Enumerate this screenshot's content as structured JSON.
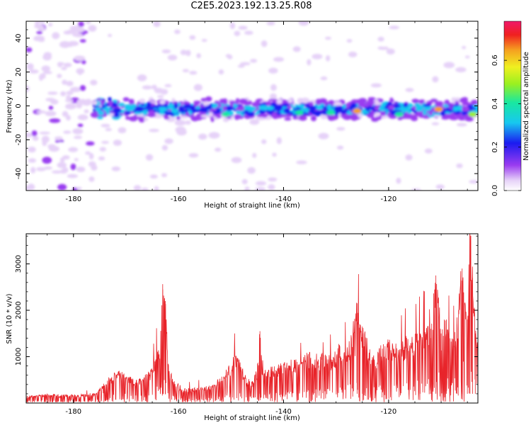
{
  "figure": {
    "title": "C2E5.2023.192.13.25.R08"
  },
  "chart_data": [
    {
      "type": "heatmap",
      "xlabel": "Height of straight line (km)",
      "ylabel": "Frequency (Hz)",
      "xlim": [
        -189,
        -103
      ],
      "ylim": [
        -50,
        50
      ],
      "xticks": [
        -180,
        -160,
        -140,
        -120
      ],
      "yticks": [
        -40,
        -20,
        0,
        20,
        40
      ],
      "colorbar": {
        "label": "Normalized spectral amplitude",
        "range": [
          0.0,
          0.78
        ],
        "ticks": [
          0.0,
          0.2,
          0.4,
          0.6
        ]
      },
      "band": {
        "center_frequency": -2,
        "note": "strong band near -2 Hz from about -176 km to -103 km"
      }
    },
    {
      "type": "line",
      "xlabel": "Height of straight line (km)",
      "ylabel": "SNR (10 * v/v)",
      "xlim": [
        -189,
        -103
      ],
      "ylim": [
        0,
        3650
      ],
      "xticks": [
        -180,
        -160,
        -140,
        -120
      ],
      "yticks": [
        1000,
        2000,
        3000
      ],
      "series": [
        {
          "color": "#e8242a",
          "x": [
            -189,
            -185,
            -180,
            -176,
            -173,
            -171,
            -169,
            -167,
            -165,
            -164,
            -163.5,
            -163,
            -162.5,
            -162,
            -161,
            -159,
            -157,
            -155,
            -153,
            -151,
            -149,
            -147,
            -146,
            -145,
            -144.5,
            -144,
            -143,
            -141,
            -139,
            -137,
            -135,
            -133,
            -131,
            -129,
            -128,
            -127,
            -126,
            -125.5,
            -125,
            -124,
            -123,
            -122,
            -120,
            -118,
            -116,
            -114,
            -112,
            -111,
            -110,
            -109,
            -108,
            -107,
            -106,
            -105,
            -104.5,
            -104,
            -103.5,
            -103
          ],
          "y": [
            150,
            180,
            170,
            200,
            550,
            650,
            520,
            480,
            700,
            1100,
            1300,
            2450,
            2200,
            900,
            450,
            300,
            320,
            330,
            400,
            700,
            1000,
            500,
            420,
            700,
            1550,
            600,
            700,
            800,
            900,
            850,
            1050,
            1000,
            950,
            1250,
            1100,
            1400,
            2150,
            1700,
            1650,
            1300,
            1000,
            1100,
            1300,
            1200,
            1400,
            1500,
            1600,
            2750,
            1500,
            1800,
            1400,
            1700,
            2900,
            1800,
            3600,
            2700,
            1500,
            1100
          ]
        }
      ]
    }
  ]
}
